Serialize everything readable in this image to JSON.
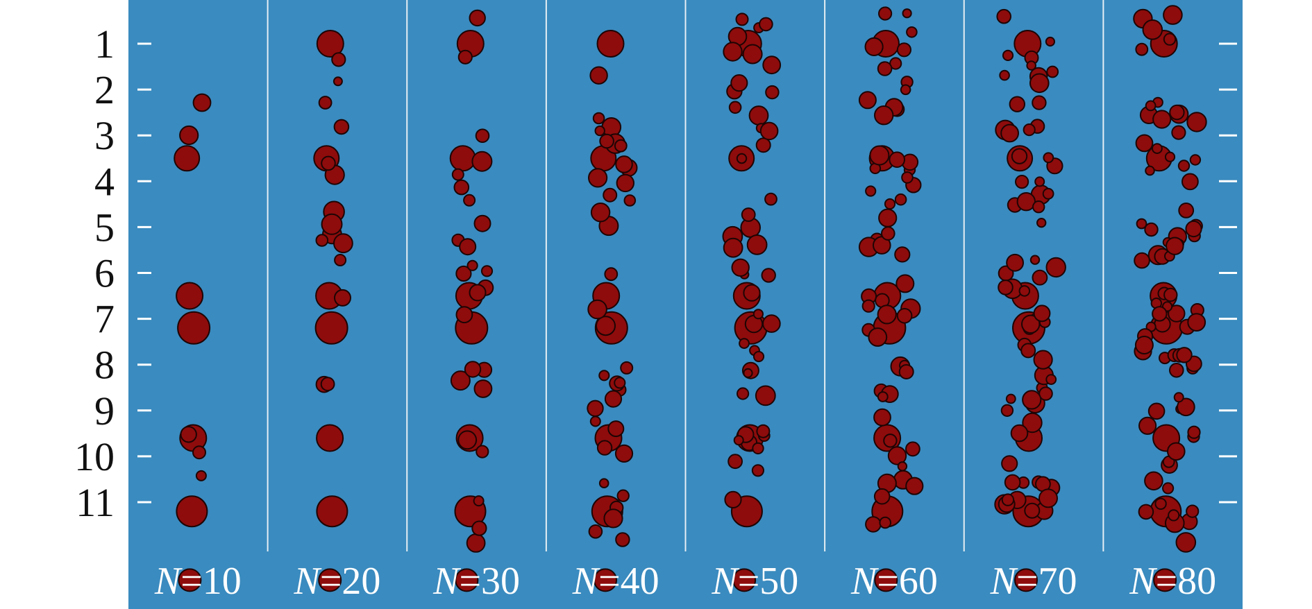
{
  "colors": {
    "background": "#3a8bbf",
    "particle": "#8e0c0c",
    "particle_edge": "#1e0404",
    "divider": "#e6eef4",
    "tick": "#ffffff",
    "axis_text": "#111111",
    "label_text": "#ffffff"
  },
  "rows": [
    "1",
    "2",
    "3",
    "4",
    "5",
    "6",
    "7",
    "8",
    "9",
    "10",
    "11"
  ],
  "panels": [
    {
      "symbol": "N",
      "eq": "=",
      "value": "10"
    },
    {
      "symbol": "N",
      "eq": "=",
      "value": "20"
    },
    {
      "symbol": "N",
      "eq": "=",
      "value": "30"
    },
    {
      "symbol": "N",
      "eq": "=",
      "value": "40"
    },
    {
      "symbol": "N",
      "eq": "=",
      "value": "50"
    },
    {
      "symbol": "N",
      "eq": "=",
      "value": "60"
    },
    {
      "symbol": "N",
      "eq": "=",
      "value": "70"
    },
    {
      "symbol": "N",
      "eq": "=",
      "value": "80"
    }
  ]
}
